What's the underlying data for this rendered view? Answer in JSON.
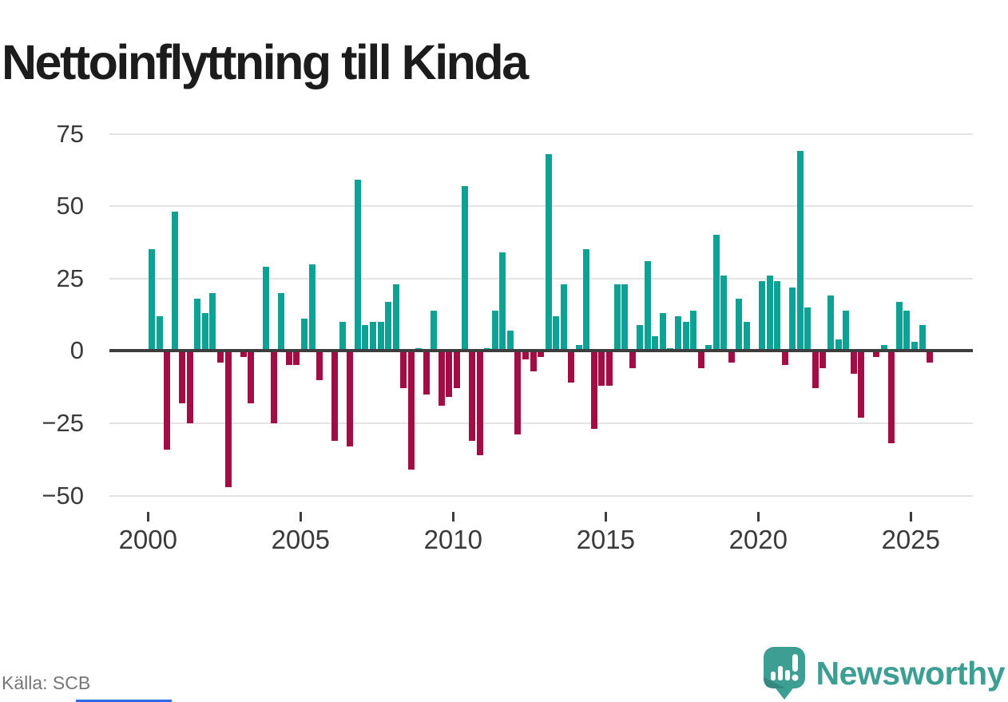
{
  "title": "Nettoinflyttning till Kinda",
  "footer": {
    "source": "Källa: SCB",
    "brand": "Newsworthy"
  },
  "colors": {
    "positive": "#0ea296",
    "negative": "#a30d45",
    "grid": "#e4e4e4",
    "axis": "#3d3d3d",
    "brand_teal": "#3d9e94",
    "title_text": "#1c1c1c",
    "tick_text": "#3a3a3a",
    "source_text": "#767676"
  },
  "chart_data": {
    "type": "bar",
    "title": "Nettoinflyttning till Kinda",
    "xlabel": "",
    "ylabel": "",
    "frequency": "quarterly",
    "start_year": 2000,
    "start_quarter": 1,
    "end_year": 2025,
    "end_quarter": 3,
    "values": [
      35,
      12,
      -34,
      48,
      -18,
      -25,
      18,
      13,
      20,
      -4,
      -47,
      0,
      -2,
      -18,
      0,
      29,
      -25,
      20,
      -5,
      -5,
      11,
      30,
      -10,
      0,
      -31,
      10,
      -33,
      59,
      9,
      10,
      10,
      17,
      23,
      -13,
      -41,
      1,
      -15,
      14,
      -19,
      -16,
      -13,
      57,
      -31,
      -36,
      1,
      14,
      34,
      7,
      -29,
      -3,
      -7,
      -2,
      68,
      12,
      23,
      -11,
      2,
      35,
      -27,
      -12,
      -12,
      23,
      23,
      -6,
      9,
      31,
      5,
      13,
      1,
      12,
      10,
      14,
      -6,
      2,
      40,
      26,
      -4,
      18,
      10,
      0,
      24,
      26,
      24,
      -5,
      22,
      69,
      15,
      -13,
      -6,
      19,
      4,
      14,
      -8,
      -23,
      0,
      -2,
      2,
      -32,
      17,
      14,
      3,
      9,
      -4
    ],
    "yticks": [
      75,
      50,
      25,
      0,
      -25,
      -50
    ],
    "ylim": [
      -50,
      75
    ],
    "xticks": [
      2000,
      2005,
      2010,
      2015,
      2020,
      2025
    ],
    "grid": true,
    "legend": "none",
    "positive_color": "#0ea296",
    "negative_color": "#a30d45"
  }
}
